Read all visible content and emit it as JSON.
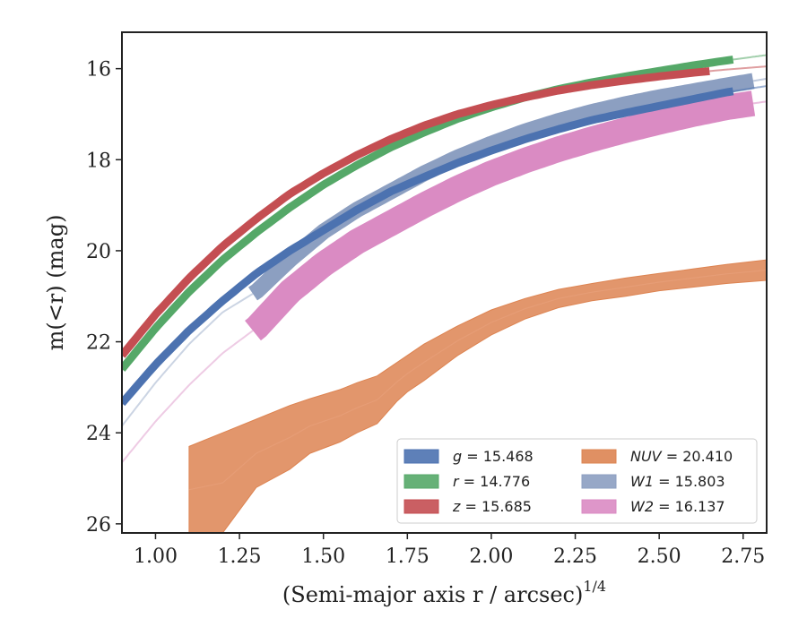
{
  "chart_data": {
    "type": "line",
    "xlabel": "(Semi-major axis r / arcsec)",
    "xlabel_exponent": "1/4",
    "ylabel": "m(<r) (mag)",
    "xlim": [
      0.9,
      2.82
    ],
    "ylim": [
      26.2,
      15.2
    ],
    "y_inverted": true,
    "grid": false,
    "legend_position": "lower-right",
    "xticks": [
      "1.00",
      "1.25",
      "1.50",
      "1.75",
      "2.00",
      "2.25",
      "2.50",
      "2.75"
    ],
    "xtick_values": [
      1.0,
      1.25,
      1.5,
      1.75,
      2.0,
      2.25,
      2.5,
      2.75
    ],
    "yticks": [
      "16",
      "18",
      "20",
      "22",
      "24",
      "26"
    ],
    "ytick_values": [
      16,
      18,
      20,
      22,
      24,
      26
    ],
    "series": [
      {
        "name": "g = 15.468",
        "label_var": "g",
        "label_val": "= 15.468",
        "color": "#4c72b0",
        "style": "curve",
        "band_width": 0.05,
        "x_start": 0.9,
        "x_end": 2.72,
        "ext_end": 2.82,
        "x": [
          0.9,
          1.0,
          1.1,
          1.2,
          1.3,
          1.4,
          1.5,
          1.6,
          1.7,
          1.8,
          1.9,
          2.0,
          2.1,
          2.2,
          2.3,
          2.4,
          2.5,
          2.6,
          2.7,
          2.82
        ],
        "y": [
          23.35,
          22.5,
          21.75,
          21.1,
          20.5,
          20.0,
          19.55,
          19.1,
          18.7,
          18.38,
          18.07,
          17.8,
          17.55,
          17.33,
          17.13,
          16.97,
          16.82,
          16.67,
          16.52,
          16.38
        ]
      },
      {
        "name": "r = 14.776",
        "label_var": "r",
        "label_val": "= 14.776",
        "color": "#55a868",
        "style": "curve",
        "band_width": 0.05,
        "x_start": 0.9,
        "x_end": 2.72,
        "ext_end": 2.82,
        "x": [
          0.9,
          1.0,
          1.1,
          1.2,
          1.3,
          1.4,
          1.5,
          1.6,
          1.7,
          1.8,
          1.9,
          2.0,
          2.1,
          2.2,
          2.3,
          2.4,
          2.5,
          2.6,
          2.7,
          2.82
        ],
        "y": [
          22.6,
          21.7,
          20.9,
          20.2,
          19.6,
          19.05,
          18.55,
          18.12,
          17.73,
          17.4,
          17.1,
          16.85,
          16.63,
          16.45,
          16.3,
          16.17,
          16.05,
          15.93,
          15.82,
          15.7
        ]
      },
      {
        "name": "z = 15.685",
        "label_var": "z",
        "label_val": "= 15.685",
        "color": "#c44e52",
        "style": "curve",
        "band_width": 0.05,
        "x_start": 0.9,
        "x_end": 2.65,
        "ext_end": 2.82,
        "x": [
          0.9,
          1.0,
          1.1,
          1.2,
          1.3,
          1.4,
          1.5,
          1.6,
          1.7,
          1.8,
          1.9,
          2.0,
          2.1,
          2.2,
          2.3,
          2.4,
          2.5,
          2.6,
          2.7,
          2.82
        ],
        "y": [
          22.3,
          21.4,
          20.6,
          19.9,
          19.3,
          18.75,
          18.3,
          17.9,
          17.55,
          17.25,
          17.0,
          16.8,
          16.63,
          16.48,
          16.36,
          16.26,
          16.17,
          16.09,
          16.02,
          15.95
        ]
      },
      {
        "name": "NUV = 20.410",
        "label_var": "NUV",
        "label_val": "= 20.410",
        "color": "#dd8452",
        "style": "band",
        "x": [
          1.1,
          1.2,
          1.3,
          1.4,
          1.46,
          1.55,
          1.6,
          1.66,
          1.72,
          1.75,
          1.8,
          1.9,
          2.0,
          2.1,
          2.2,
          2.3,
          2.4,
          2.5,
          2.6,
          2.7,
          2.82
        ],
        "y_low": [
          26.2,
          26.2,
          25.2,
          24.8,
          24.45,
          24.2,
          24.0,
          23.8,
          23.3,
          23.1,
          22.85,
          22.3,
          21.85,
          21.5,
          21.25,
          21.1,
          21.0,
          20.88,
          20.8,
          20.72,
          20.65
        ],
        "y_high": [
          24.3,
          24.0,
          23.7,
          23.4,
          23.25,
          23.05,
          22.9,
          22.75,
          22.45,
          22.3,
          22.05,
          21.65,
          21.3,
          21.05,
          20.85,
          20.72,
          20.6,
          20.5,
          20.4,
          20.3,
          20.2
        ]
      },
      {
        "name": "W1 = 15.803",
        "label_var": "W1",
        "label_val": "= 15.803",
        "color": "#8c9fc1",
        "style": "curve",
        "band_width": 0.1,
        "x_start": 1.29,
        "x_end": 2.78,
        "ext_end": 2.82,
        "x": [
          0.9,
          1.0,
          1.1,
          1.2,
          1.3,
          1.4,
          1.5,
          1.6,
          1.7,
          1.8,
          1.9,
          2.0,
          2.1,
          2.2,
          2.3,
          2.4,
          2.5,
          2.6,
          2.7,
          2.82
        ],
        "y": [
          23.85,
          22.9,
          22.05,
          21.35,
          20.9,
          20.2,
          19.58,
          19.1,
          18.7,
          18.3,
          17.95,
          17.65,
          17.38,
          17.15,
          16.95,
          16.78,
          16.63,
          16.5,
          16.37,
          16.22
        ]
      },
      {
        "name": "W2 = 16.137",
        "label_var": "W2",
        "label_val": "= 16.137",
        "color": "#da8bc3",
        "style": "curve",
        "band_width": 0.16,
        "x_start": 1.29,
        "x_end": 2.78,
        "ext_end": 2.82,
        "x": [
          0.9,
          1.0,
          1.1,
          1.2,
          1.3,
          1.4,
          1.5,
          1.6,
          1.7,
          1.8,
          1.9,
          2.0,
          2.1,
          2.2,
          2.3,
          2.4,
          2.5,
          2.6,
          2.7,
          2.82
        ],
        "y": [
          24.65,
          23.75,
          22.95,
          22.25,
          21.7,
          20.9,
          20.3,
          19.8,
          19.4,
          19.0,
          18.63,
          18.3,
          18.02,
          17.77,
          17.55,
          17.35,
          17.17,
          17.0,
          16.85,
          16.72
        ]
      }
    ]
  }
}
